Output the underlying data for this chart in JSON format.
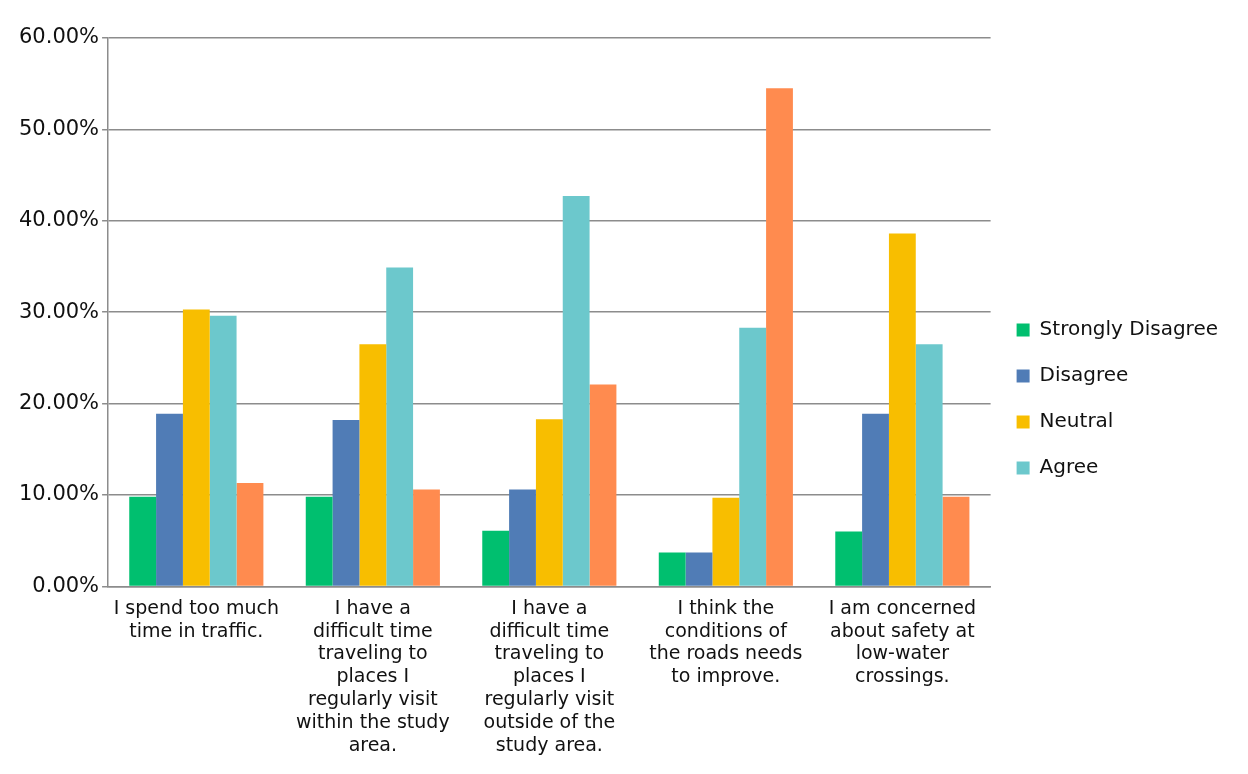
{
  "chart_data": {
    "type": "bar",
    "categories": [
      "I spend too much time in traffic.",
      "I have a difficult time traveling to places I regularly visit within the study area.",
      "I have a difficult time traveling to places I regularly visit outside of the study area.",
      "I think the conditions of the roads needs to improve.",
      "I am concerned about safety at low-water crossings."
    ],
    "series": [
      {
        "name": "Strongly Disagree",
        "color": "#00bf6f",
        "values": [
          9.8,
          9.8,
          6.1,
          3.7,
          6.0
        ]
      },
      {
        "name": "Disagree",
        "color": "#507cb6",
        "values": [
          18.9,
          18.2,
          10.6,
          3.7,
          18.9
        ]
      },
      {
        "name": "Neutral",
        "color": "#f8be00",
        "values": [
          30.3,
          26.5,
          18.3,
          9.7,
          38.6
        ]
      },
      {
        "name": "Agree",
        "color": "#6cc8cc",
        "values": [
          29.6,
          34.9,
          42.7,
          28.3,
          26.5
        ]
      },
      {
        "color": "#ff8b4f",
        "values": [
          11.3,
          10.6,
          22.1,
          54.5,
          9.8
        ]
      }
    ],
    "ylim": [
      0,
      60
    ],
    "yticks": [
      {
        "value": 0,
        "label": "0.00%"
      },
      {
        "value": 10,
        "label": "10.00%"
      },
      {
        "value": 20,
        "label": "20.00%"
      },
      {
        "value": 30,
        "label": "30.00%"
      },
      {
        "value": 40,
        "label": "40.00%"
      },
      {
        "value": 50,
        "label": "50.00%"
      },
      {
        "value": 60,
        "label": "60.00%"
      }
    ],
    "grid": "y",
    "legend": "right"
  }
}
